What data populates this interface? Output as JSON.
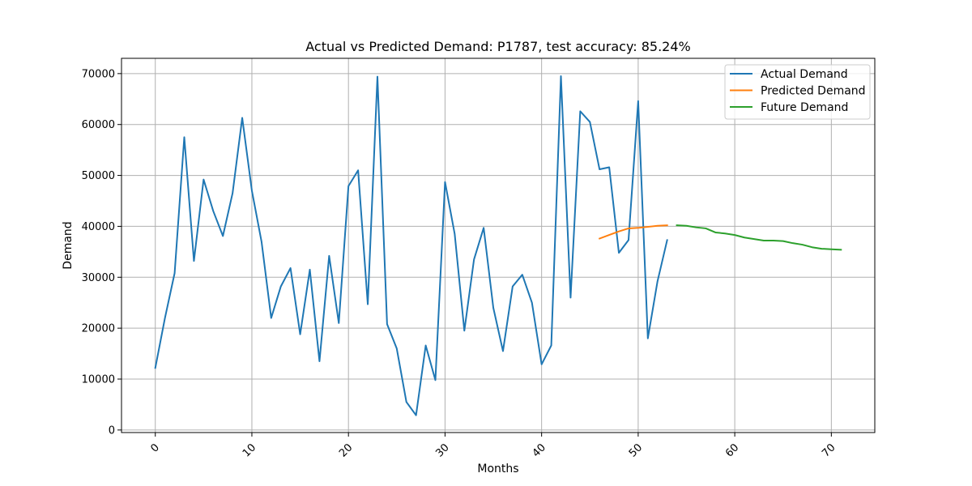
{
  "chart_data": {
    "type": "line",
    "title": "Actual vs Predicted Demand: P1787, test accuracy: 85.24%",
    "xlabel": "Months",
    "ylabel": "Demand",
    "xlim": [
      -3.5,
      74.5
    ],
    "ylim": [
      -500,
      73000
    ],
    "xticks": [
      0,
      10,
      20,
      30,
      40,
      50,
      60,
      70
    ],
    "yticks": [
      0,
      10000,
      20000,
      30000,
      40000,
      50000,
      60000,
      70000
    ],
    "grid": true,
    "legend_position": "top-right",
    "series": [
      {
        "name": "Actual Demand",
        "color": "#1f77b4",
        "x": [
          0,
          1,
          2,
          3,
          4,
          5,
          6,
          7,
          8,
          9,
          10,
          11,
          12,
          13,
          14,
          15,
          16,
          17,
          18,
          19,
          20,
          21,
          22,
          23,
          24,
          25,
          26,
          27,
          28,
          29,
          30,
          31,
          32,
          33,
          34,
          35,
          36,
          37,
          38,
          39,
          40,
          41,
          42,
          43,
          44,
          45,
          46,
          47,
          48,
          49,
          50,
          51,
          52,
          53
        ],
        "y": [
          12200,
          22000,
          30800,
          57500,
          33200,
          49200,
          43000,
          38100,
          46500,
          61300,
          47000,
          37000,
          22000,
          28200,
          31800,
          18800,
          31500,
          13500,
          34200,
          21000,
          47900,
          51000,
          24700,
          69400,
          20800,
          16000,
          5500,
          2900,
          16600,
          9800,
          48700,
          38500,
          19500,
          33500,
          39700,
          24000,
          15500,
          28200,
          30500,
          25000,
          12900,
          16600,
          69500,
          26000,
          62600,
          60500,
          51200,
          51600,
          34800,
          37300,
          64600,
          18000,
          29200,
          37300
        ]
      },
      {
        "name": "Predicted Demand",
        "color": "#ff7f0e",
        "x": [
          46,
          47,
          48,
          49,
          50,
          51,
          52,
          53
        ],
        "y": [
          37600,
          38300,
          39000,
          39600,
          39700,
          39900,
          40100,
          40200
        ]
      },
      {
        "name": "Future Demand",
        "color": "#2ca02c",
        "x": [
          54,
          55,
          56,
          57,
          58,
          59,
          60,
          61,
          62,
          63,
          64,
          65,
          66,
          67,
          68,
          69,
          70,
          71
        ],
        "y": [
          40200,
          40100,
          39800,
          39600,
          38800,
          38600,
          38300,
          37800,
          37500,
          37200,
          37200,
          37100,
          36700,
          36400,
          35900,
          35600,
          35500,
          35400
        ]
      }
    ]
  }
}
